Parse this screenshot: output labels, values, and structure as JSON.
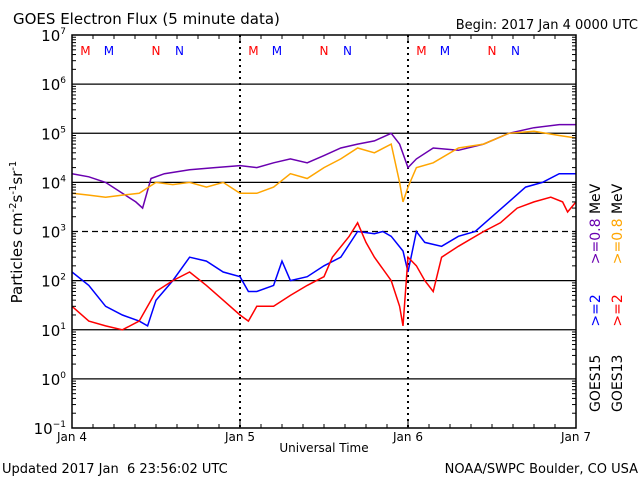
{
  "chart_data": {
    "type": "line",
    "title": "GOES Electron Flux (5 minute data)",
    "begin_label": "Begin: 2017 Jan 4 0000 UTC",
    "xlabel": "Universal Time",
    "ylabel": "Particles cm-2s-1sr-1",
    "ylabel_parts": {
      "main": "Particles cm",
      "e1": "-2",
      "s": "s",
      "e2": "-1",
      "sr": "sr",
      "e3": "-1"
    },
    "x_unit": "days since 2017 Jan 4 00:00 UTC",
    "xlim": [
      0,
      3
    ],
    "x_ticks": [
      {
        "x": 0,
        "label": "Jan 4"
      },
      {
        "x": 1,
        "label": "Jan 5"
      },
      {
        "x": 2,
        "label": "Jan 6"
      },
      {
        "x": 3,
        "label": "Jan 7"
      }
    ],
    "yscale": "log",
    "ylim_exponent": [
      -1,
      7
    ],
    "y_ticks": [
      {
        "exp": 7,
        "label": "7"
      },
      {
        "exp": 6,
        "label": "6"
      },
      {
        "exp": 5,
        "label": "5"
      },
      {
        "exp": 4,
        "label": "4"
      },
      {
        "exp": 3,
        "label": "3"
      },
      {
        "exp": 2,
        "label": "2"
      },
      {
        "exp": 1,
        "label": "1"
      },
      {
        "exp": 0,
        "label": "0"
      },
      {
        "exp": -1,
        "label": "−1"
      }
    ],
    "y_tick_base": "10",
    "threshold_exponent": 3,
    "markers": [
      {
        "x": 0.08,
        "label": "M",
        "color": "#ff0000"
      },
      {
        "x": 0.22,
        "label": "M",
        "color": "#0000ff"
      },
      {
        "x": 0.5,
        "label": "N",
        "color": "#ff0000"
      },
      {
        "x": 0.64,
        "label": "N",
        "color": "#0000ff"
      },
      {
        "x": 1.08,
        "label": "M",
        "color": "#ff0000"
      },
      {
        "x": 1.22,
        "label": "M",
        "color": "#0000ff"
      },
      {
        "x": 1.5,
        "label": "N",
        "color": "#ff0000"
      },
      {
        "x": 1.64,
        "label": "N",
        "color": "#0000ff"
      },
      {
        "x": 2.08,
        "label": "M",
        "color": "#ff0000"
      },
      {
        "x": 2.22,
        "label": "M",
        "color": "#0000ff"
      },
      {
        "x": 2.5,
        "label": "N",
        "color": "#ff0000"
      },
      {
        "x": 2.64,
        "label": "N",
        "color": "#0000ff"
      }
    ],
    "legend": [
      {
        "satellite": "GOES15",
        "label_high": ">=0.8 MeV",
        "color_high": "#6a00b0",
        "label_low": ">=2",
        "color_low": "#0000ff"
      },
      {
        "satellite": "GOES13",
        "label_high": ">=0.8 MeV",
        "color_high": "#ffa500",
        "label_low": ">=2",
        "color_low": "#ff0000"
      }
    ],
    "series": [
      {
        "name": "GOES15 >=0.8 MeV",
        "color": "#6a00b0",
        "x": [
          0,
          0.1,
          0.2,
          0.3,
          0.38,
          0.42,
          0.47,
          0.55,
          0.7,
          0.85,
          1.0,
          1.1,
          1.2,
          1.3,
          1.4,
          1.5,
          1.6,
          1.7,
          1.8,
          1.9,
          1.95,
          2.0,
          2.05,
          2.15,
          2.3,
          2.45,
          2.6,
          2.75,
          2.9,
          3.0
        ],
        "y": [
          15000,
          13000,
          10000,
          6000,
          4000,
          3000,
          12000,
          15000,
          18000,
          20000,
          22000,
          20000,
          25000,
          30000,
          25000,
          35000,
          50000,
          60000,
          70000,
          100000,
          60000,
          20000,
          30000,
          50000,
          45000,
          60000,
          100000,
          130000,
          150000,
          150000
        ]
      },
      {
        "name": "GOES13 >=0.8 MeV",
        "color": "#ffa500",
        "x": [
          0,
          0.1,
          0.2,
          0.3,
          0.4,
          0.5,
          0.6,
          0.7,
          0.8,
          0.9,
          1.0,
          1.1,
          1.2,
          1.3,
          1.4,
          1.5,
          1.6,
          1.7,
          1.8,
          1.9,
          1.95,
          1.97,
          2.0,
          2.05,
          2.15,
          2.3,
          2.45,
          2.6,
          2.75,
          2.9,
          3.0
        ],
        "y": [
          6000,
          5500,
          5000,
          5500,
          6000,
          10000,
          9000,
          10000,
          8000,
          10000,
          6000,
          6000,
          8000,
          15000,
          12000,
          20000,
          30000,
          50000,
          40000,
          60000,
          10000,
          4000,
          8000,
          20000,
          25000,
          50000,
          60000,
          100000,
          110000,
          90000,
          80000
        ]
      },
      {
        "name": "GOES15 >=2 MeV",
        "color": "#0000ff",
        "x": [
          0,
          0.1,
          0.2,
          0.3,
          0.4,
          0.45,
          0.5,
          0.6,
          0.7,
          0.8,
          0.9,
          1.0,
          1.05,
          1.1,
          1.2,
          1.25,
          1.3,
          1.4,
          1.5,
          1.6,
          1.7,
          1.8,
          1.85,
          1.9,
          1.97,
          2.0,
          2.05,
          2.1,
          2.2,
          2.3,
          2.4,
          2.5,
          2.6,
          2.7,
          2.8,
          2.9,
          3.0
        ],
        "y": [
          150,
          80,
          30,
          20,
          15,
          12,
          40,
          100,
          300,
          250,
          150,
          120,
          60,
          60,
          80,
          250,
          100,
          120,
          200,
          300,
          1000,
          900,
          1000,
          800,
          400,
          150,
          1000,
          600,
          500,
          800,
          1000,
          2000,
          4000,
          8000,
          10000,
          15000,
          15000
        ]
      },
      {
        "name": "GOES13 >=2 MeV",
        "color": "#ff0000",
        "x": [
          0,
          0.1,
          0.2,
          0.3,
          0.4,
          0.45,
          0.5,
          0.6,
          0.7,
          0.8,
          0.9,
          1.0,
          1.05,
          1.1,
          1.2,
          1.3,
          1.4,
          1.5,
          1.55,
          1.65,
          1.7,
          1.75,
          1.8,
          1.9,
          1.95,
          1.97,
          2.0,
          2.05,
          2.1,
          2.15,
          2.2,
          2.3,
          2.45,
          2.55,
          2.65,
          2.75,
          2.85,
          2.92,
          2.95,
          3.0
        ],
        "y": [
          30,
          15,
          12,
          10,
          15,
          30,
          60,
          100,
          150,
          80,
          40,
          20,
          15,
          30,
          30,
          50,
          80,
          120,
          300,
          800,
          1500,
          600,
          300,
          100,
          30,
          12,
          300,
          200,
          100,
          60,
          300,
          500,
          1000,
          1500,
          3000,
          4000,
          5000,
          4000,
          2500,
          4000
        ]
      }
    ]
  },
  "footer": {
    "updated": "Updated 2017 Jan  6 23:56:02 UTC",
    "credit": "NOAA/SWPC Boulder, CO USA"
  }
}
